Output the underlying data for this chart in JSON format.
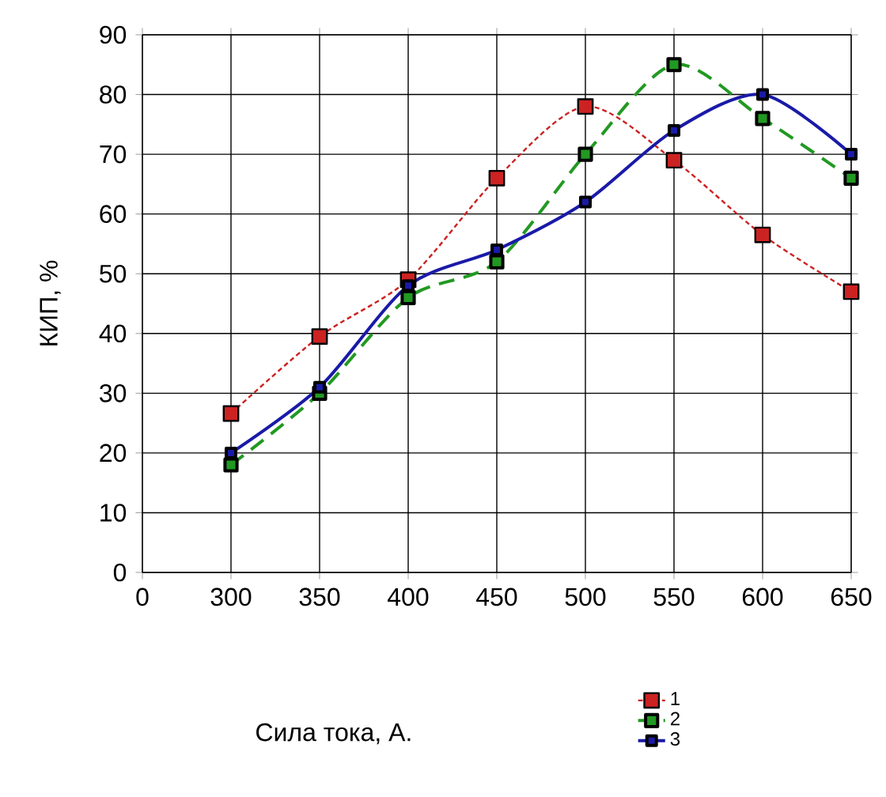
{
  "chart_data": {
    "type": "line",
    "xlabel": "Сила  тока, А.",
    "ylabel": "КИП, %",
    "categories": [
      "0",
      "300",
      "350",
      "400",
      "450",
      "500",
      "550",
      "600",
      "650"
    ],
    "series": [
      {
        "name": "1",
        "color": "#cc2222",
        "line_style": "dotted",
        "marker": "square",
        "values": [
          null,
          26.6,
          39.5,
          49,
          66,
          78,
          69,
          56.5,
          47
        ]
      },
      {
        "name": "2",
        "color": "#229922",
        "line_style": "dashed",
        "marker": "square",
        "values": [
          null,
          18,
          30,
          46,
          52,
          70,
          85,
          76,
          66
        ]
      },
      {
        "name": "3",
        "color": "#1a1aa8",
        "line_style": "solid",
        "marker": "square",
        "values": [
          null,
          20,
          31,
          48,
          54,
          62,
          74,
          80,
          70
        ]
      }
    ],
    "ylim": [
      0,
      90
    ],
    "yticks": [
      0,
      10,
      20,
      30,
      40,
      50,
      60,
      70,
      80,
      90
    ],
    "grid": true,
    "legend": "bottom right"
  }
}
